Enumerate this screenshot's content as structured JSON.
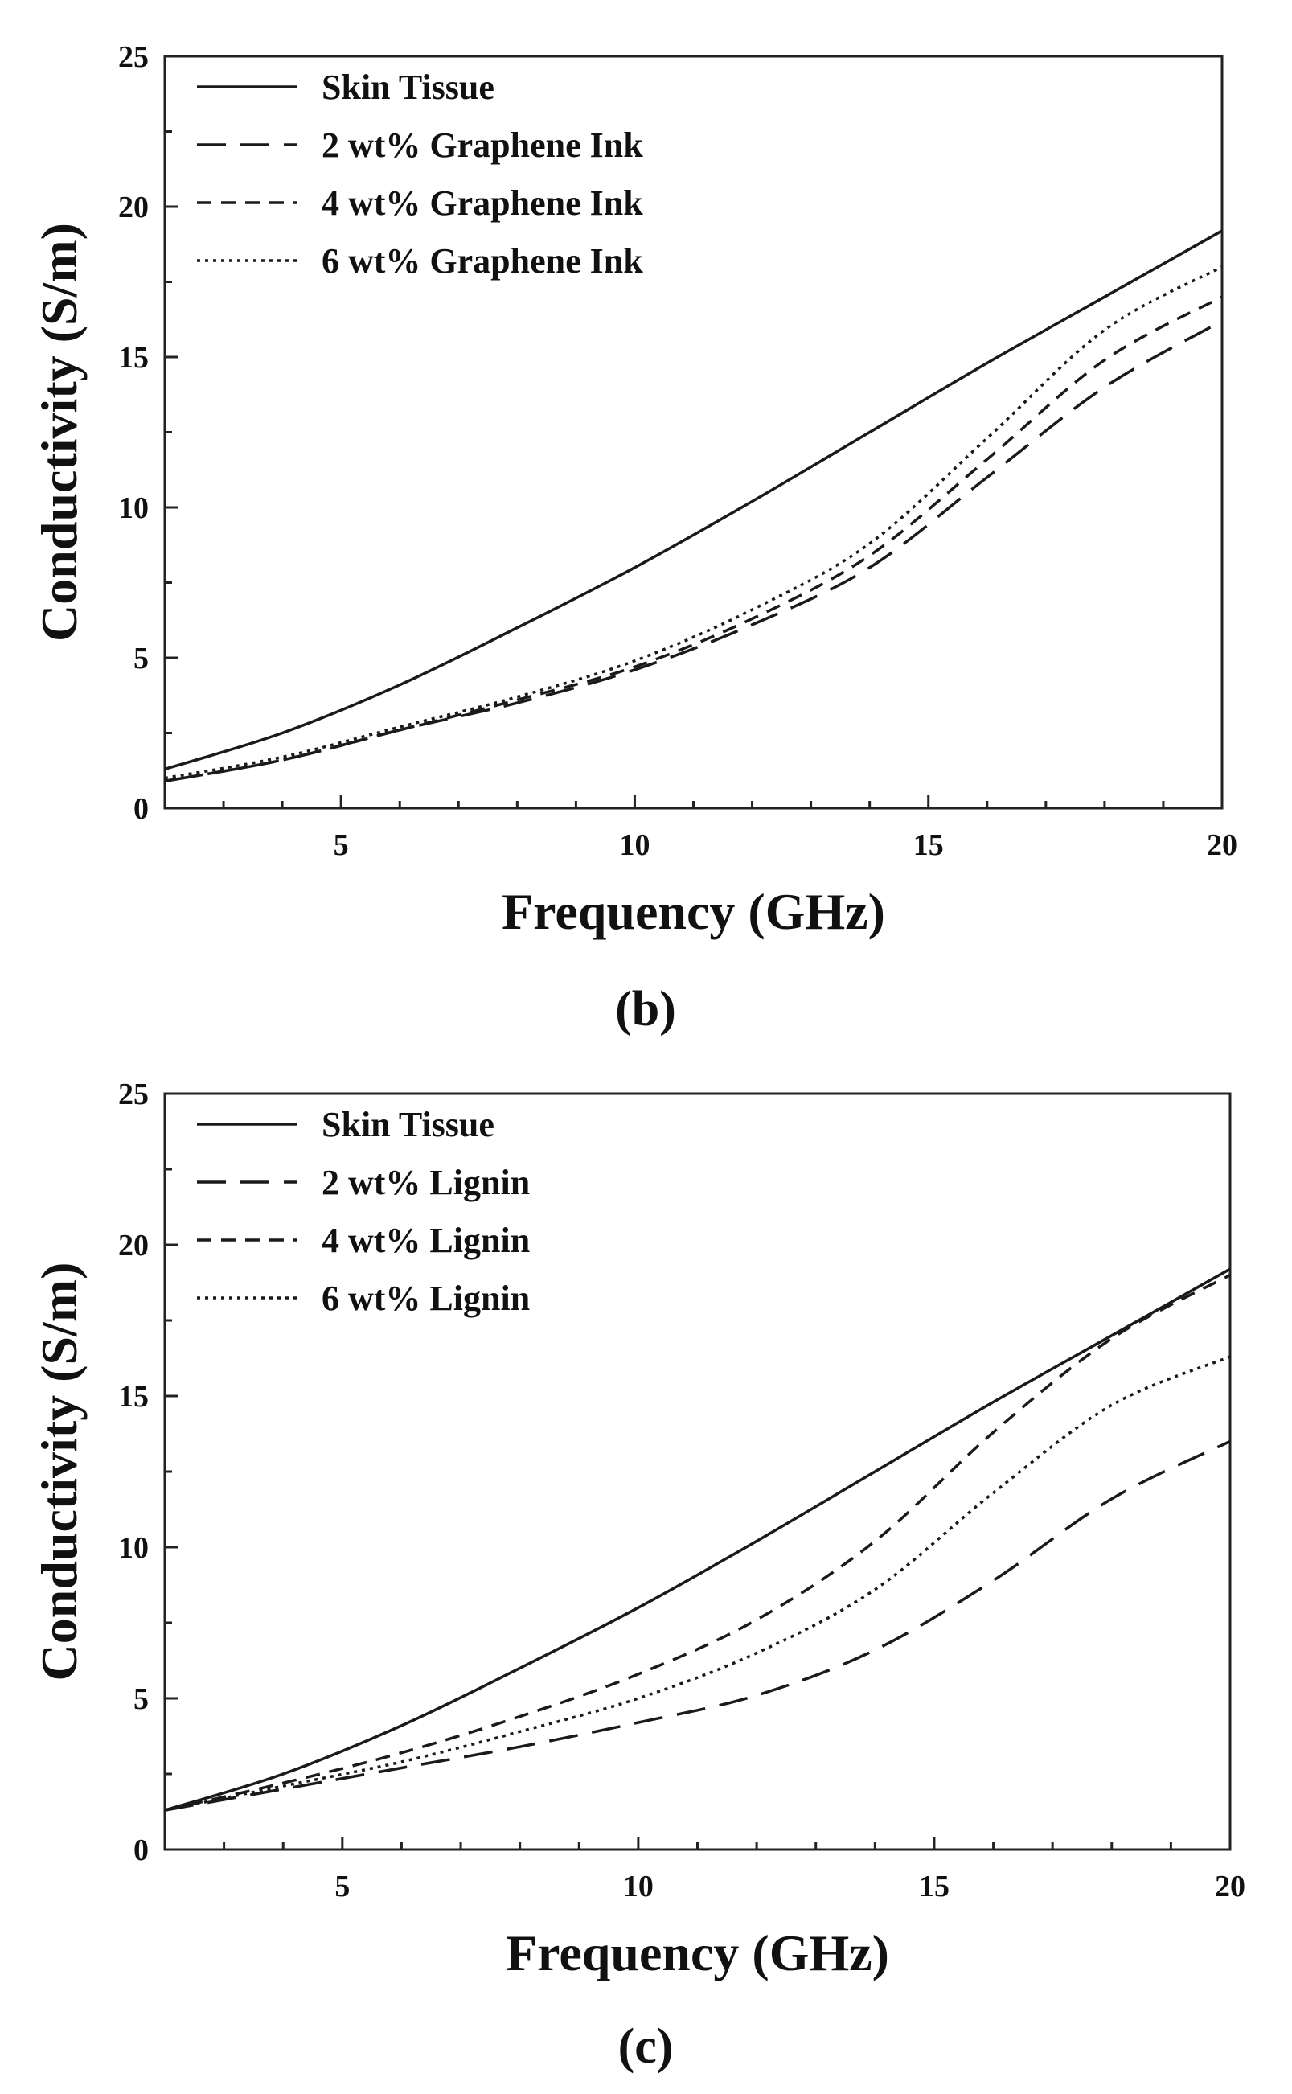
{
  "chart_data": [
    {
      "type": "line",
      "panel_label": "(b)",
      "title": "",
      "xlabel": "Frequency (GHz)",
      "ylabel": "Conductivity (S/m)",
      "xlim": [
        2,
        20
      ],
      "ylim": [
        0,
        25
      ],
      "xticks": [
        5,
        10,
        15,
        20
      ],
      "yticks": [
        0,
        5,
        10,
        15,
        20,
        25
      ],
      "legend_position": "top-left",
      "grid": false,
      "x": [
        2,
        4,
        6,
        8,
        10,
        12,
        14,
        16,
        18,
        20
      ],
      "series": [
        {
          "name": "Skin Tissue",
          "style": "solid",
          "values": [
            1.3,
            2.5,
            4.1,
            6.0,
            8.0,
            10.2,
            12.5,
            14.8,
            17.0,
            19.2
          ]
        },
        {
          "name": "2 wt% Graphene Ink",
          "style": "dashed",
          "values": [
            0.9,
            1.6,
            2.6,
            3.5,
            4.6,
            6.1,
            8.0,
            11.0,
            14.0,
            16.2
          ]
        },
        {
          "name": "4 wt% Graphene Ink",
          "style": "short-dashed",
          "values": [
            0.9,
            1.6,
            2.6,
            3.6,
            4.7,
            6.3,
            8.4,
            11.6,
            14.9,
            17.0
          ]
        },
        {
          "name": "6 wt% Graphene Ink",
          "style": "dotted",
          "values": [
            1.0,
            1.7,
            2.7,
            3.7,
            4.9,
            6.6,
            8.8,
            12.3,
            15.9,
            18.0
          ]
        }
      ]
    },
    {
      "type": "line",
      "panel_label": "(c)",
      "title": "",
      "xlabel": "Frequency (GHz)",
      "ylabel": "Conductivity (S/m)",
      "xlim": [
        2,
        20
      ],
      "ylim": [
        0,
        25
      ],
      "xticks": [
        5,
        10,
        15,
        20
      ],
      "yticks": [
        0,
        5,
        10,
        15,
        20,
        25
      ],
      "legend_position": "top-left",
      "grid": false,
      "x": [
        2,
        4,
        6,
        8,
        10,
        12,
        14,
        16,
        18,
        20
      ],
      "series": [
        {
          "name": "Skin Tissue",
          "style": "solid",
          "values": [
            1.3,
            2.5,
            4.1,
            6.0,
            8.0,
            10.2,
            12.5,
            14.8,
            17.0,
            19.2
          ]
        },
        {
          "name": "2 wt% Lignin",
          "style": "dashed",
          "values": [
            1.3,
            2.0,
            2.7,
            3.4,
            4.2,
            5.1,
            6.6,
            8.9,
            11.6,
            13.5
          ]
        },
        {
          "name": "4 wt% Lignin",
          "style": "short-dashed",
          "values": [
            1.3,
            2.2,
            3.2,
            4.4,
            5.8,
            7.6,
            10.2,
            13.8,
            16.9,
            19.0
          ]
        },
        {
          "name": "6 wt% Lignin",
          "style": "dotted",
          "values": [
            1.3,
            2.1,
            2.9,
            3.9,
            5.0,
            6.5,
            8.6,
            11.8,
            14.7,
            16.3
          ]
        }
      ]
    }
  ]
}
